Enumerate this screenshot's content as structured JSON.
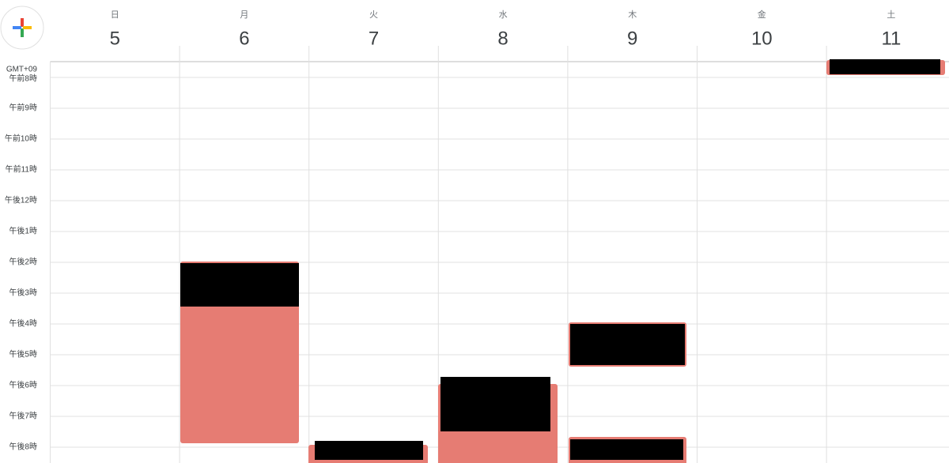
{
  "header": {
    "timezone": "GMT+09",
    "days": [
      {
        "weekday": "日",
        "date": "5"
      },
      {
        "weekday": "月",
        "date": "6"
      },
      {
        "weekday": "火",
        "date": "7"
      },
      {
        "weekday": "水",
        "date": "8"
      },
      {
        "weekday": "木",
        "date": "9"
      },
      {
        "weekday": "金",
        "date": "10"
      },
      {
        "weekday": "土",
        "date": "11"
      }
    ]
  },
  "time_labels": [
    "午前8時",
    "午前9時",
    "午前10時",
    "午前11時",
    "午後12時",
    "午後1時",
    "午後2時",
    "午後3時",
    "午後4時",
    "午後5時",
    "午後6時",
    "午後7時",
    "午後8時"
  ]
}
